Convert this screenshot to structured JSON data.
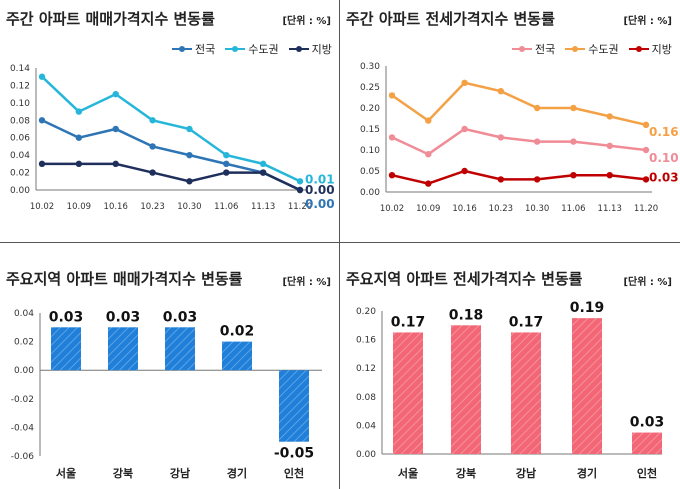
{
  "colors": {
    "nation": "#2e75b6",
    "capital": "#26b6d9",
    "region": "#1f2f5c",
    "nation_j": "#f08c96",
    "capital_j": "#f4a044",
    "region_j": "#c00000",
    "bar_blue": "#1f7fd9",
    "bar_pink": "#f26676"
  },
  "panels": [
    {
      "title": "주간 아파트 매매가격지수 변동률",
      "unit": "[단위 : %]",
      "chart_data": {
        "type": "line",
        "categories": [
          "10.02",
          "10.09",
          "10.16",
          "10.23",
          "10.30",
          "11.06",
          "11.13",
          "11.20"
        ],
        "ylim": [
          0,
          0.14
        ],
        "yticks": [
          "0.00",
          "0.02",
          "0.04",
          "0.06",
          "0.08",
          "0.10",
          "0.12",
          "0.14"
        ],
        "series": [
          {
            "name": "전국",
            "values": [
              0.08,
              0.06,
              0.07,
              0.05,
              0.04,
              0.03,
              0.02,
              0.0
            ],
            "end_label": "0.00",
            "color_key": "nation"
          },
          {
            "name": "수도권",
            "values": [
              0.13,
              0.09,
              0.11,
              0.08,
              0.07,
              0.04,
              0.03,
              0.01
            ],
            "end_label": "0.01",
            "color_key": "capital"
          },
          {
            "name": "지방",
            "values": [
              0.03,
              0.03,
              0.03,
              0.02,
              0.01,
              0.02,
              0.02,
              0.0
            ],
            "end_label": "0.00",
            "color_key": "region"
          }
        ]
      }
    },
    {
      "title": "주간 아파트 전세가격지수 변동률",
      "unit": "[단위 : %]",
      "chart_data": {
        "type": "line",
        "categories": [
          "10.02",
          "10.09",
          "10.16",
          "10.23",
          "10.30",
          "11.06",
          "11.13",
          "11.20"
        ],
        "ylim": [
          0,
          0.3
        ],
        "yticks": [
          "0.00",
          "0.05",
          "0.10",
          "0.15",
          "0.20",
          "0.25",
          "0.30"
        ],
        "series": [
          {
            "name": "전국",
            "values": [
              0.13,
              0.09,
              0.15,
              0.13,
              0.12,
              0.12,
              0.11,
              0.1
            ],
            "end_label": "0.10",
            "color_key": "nation_j"
          },
          {
            "name": "수도권",
            "values": [
              0.23,
              0.17,
              0.26,
              0.24,
              0.2,
              0.2,
              0.18,
              0.16
            ],
            "end_label": "0.16",
            "color_key": "capital_j"
          },
          {
            "name": "지방",
            "values": [
              0.04,
              0.02,
              0.05,
              0.03,
              0.03,
              0.04,
              0.04,
              0.03
            ],
            "end_label": "0.03",
            "color_key": "region_j"
          }
        ]
      }
    },
    {
      "title": "주요지역 아파트 매매가격지수 변동률",
      "unit": "[단위 : %]",
      "chart_data": {
        "type": "bar",
        "categories": [
          "서울",
          "강북",
          "강남",
          "경기",
          "인천"
        ],
        "values": [
          0.03,
          0.03,
          0.03,
          0.02,
          -0.05
        ],
        "value_labels": [
          "0.03",
          "0.03",
          "0.03",
          "0.02",
          "-0.05"
        ],
        "ylim": [
          -0.06,
          0.04
        ],
        "yticks": [
          "-0.06",
          "-0.04",
          "-0.02",
          "0.00",
          "0.02",
          "0.04"
        ],
        "color_key": "bar_blue"
      }
    },
    {
      "title": "주요지역 아파트 전세가격지수 변동률",
      "unit": "[단위 : %]",
      "chart_data": {
        "type": "bar",
        "categories": [
          "서울",
          "강북",
          "강남",
          "경기",
          "인천"
        ],
        "values": [
          0.17,
          0.18,
          0.17,
          0.19,
          0.03
        ],
        "value_labels": [
          "0.17",
          "0.18",
          "0.17",
          "0.19",
          "0.03"
        ],
        "ylim": [
          0,
          0.2
        ],
        "yticks": [
          "0.00",
          "0.04",
          "0.08",
          "0.12",
          "0.16",
          "0.20"
        ],
        "color_key": "bar_pink"
      }
    }
  ]
}
